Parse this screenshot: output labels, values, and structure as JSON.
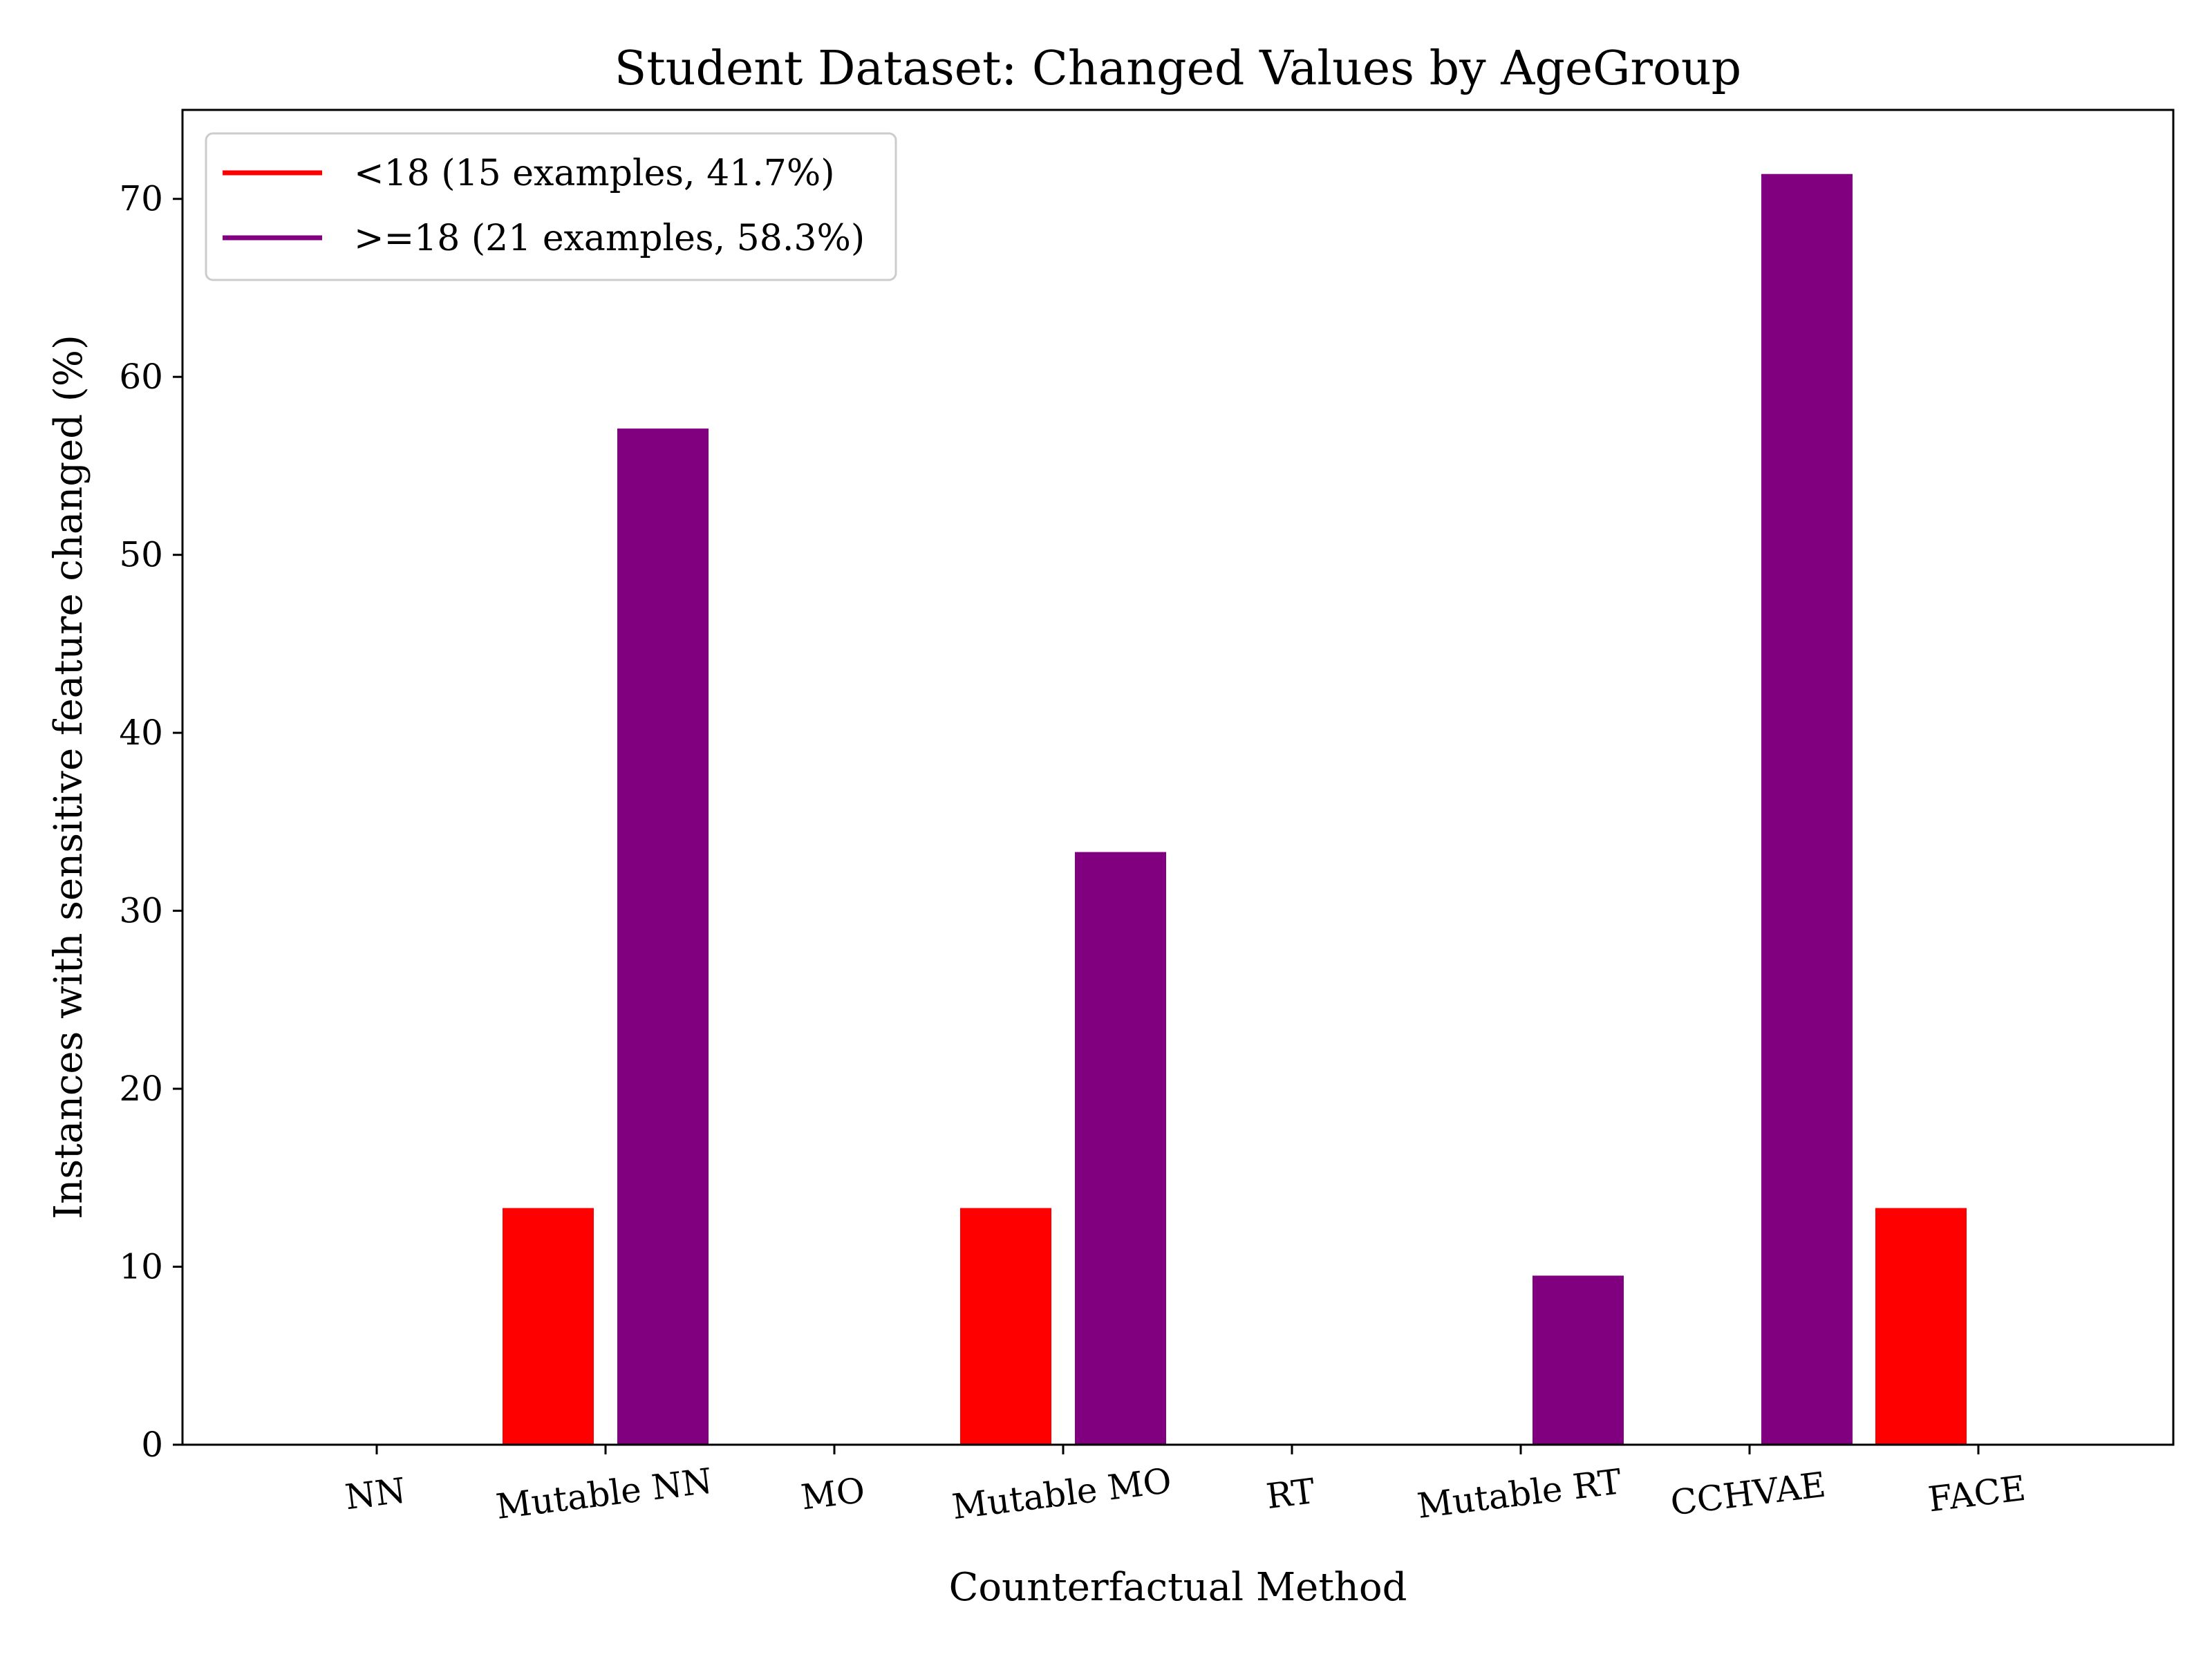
{
  "chart_data": {
    "type": "bar",
    "title": "Student Dataset: Changed Values by AgeGroup",
    "xlabel": "Counterfactual Method",
    "ylabel": "Instances with sensitive feature changed (%)",
    "categories": [
      "NN",
      "Mutable NN",
      "MO",
      "Mutable MO",
      "RT",
      "Mutable RT",
      "CCHVAE",
      "FACE"
    ],
    "series": [
      {
        "name": "<18 (15 examples, 41.7%)",
        "color": "#ff0000",
        "values": [
          0,
          13.3,
          0,
          13.3,
          0,
          0,
          0,
          13.3
        ]
      },
      {
        "name": ">=18 (21 examples, 58.3%)",
        "color": "#800080",
        "values": [
          0,
          57.1,
          0,
          33.3,
          0,
          9.5,
          71.4,
          0
        ]
      }
    ],
    "ylim": [
      0,
      75
    ],
    "yticks": [
      0,
      10,
      20,
      30,
      40,
      50,
      60,
      70
    ],
    "grid": false,
    "legend_position": "top-left",
    "xtick_rotation": "slight"
  }
}
